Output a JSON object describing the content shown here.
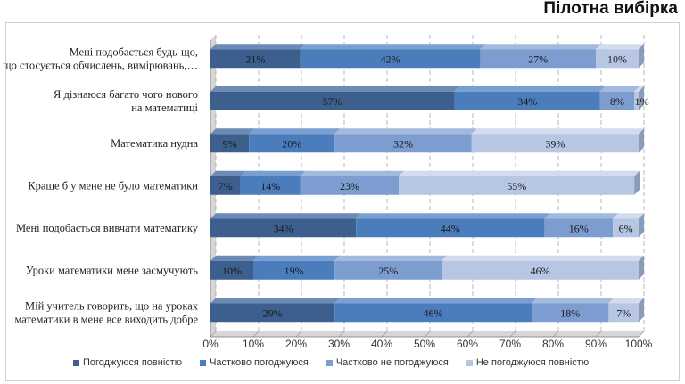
{
  "header": {
    "title": "Пілотна вибірка"
  },
  "colors": {
    "series": [
      "#3c5f8e",
      "#4b7cbc",
      "#7d9ccf",
      "#b6c6e3"
    ],
    "series_top": [
      "#6c8bb6",
      "#7aa0d3",
      "#a3badf",
      "#d3dcee"
    ],
    "series_side": [
      "#2b4469",
      "#375b8a",
      "#5b76a4",
      "#8b9bba"
    ],
    "grid": "#9a9a9a",
    "wall": "#d6d6d6"
  },
  "chart_data": {
    "type": "bar",
    "orientation": "horizontal",
    "stacked": "100%",
    "categories": [
      [
        "Мені подобається будь-що,",
        "що стосується обчислень, вимірювань,…"
      ],
      [
        "Я дізнаюся багато чого нового",
        "на математиці"
      ],
      [
        "Математика нудна"
      ],
      [
        "Краще б у мене не було математики"
      ],
      [
        "Мені подобається вивчати математику"
      ],
      [
        "Уроки математики мене засмучують"
      ],
      [
        "Мій учитель говорить, що на уроках",
        "математики в мене все виходить добре"
      ]
    ],
    "series": [
      {
        "name": "Погоджуюся повністю",
        "values": [
          21,
          57,
          9,
          7,
          34,
          10,
          29
        ]
      },
      {
        "name": "Частково погоджуюся",
        "values": [
          42,
          34,
          20,
          14,
          44,
          19,
          46
        ]
      },
      {
        "name": "Частково не погоджуюся",
        "values": [
          27,
          8,
          32,
          23,
          16,
          25,
          18
        ]
      },
      {
        "name": "Не погоджуюся повністю",
        "values": [
          10,
          1,
          39,
          55,
          6,
          46,
          7
        ]
      }
    ],
    "value_labels": [
      [
        "21%",
        "42%",
        "27%",
        "10%"
      ],
      [
        "57%",
        "34%",
        "8%",
        "1%"
      ],
      [
        "9%",
        "20%",
        "32%",
        "39%"
      ],
      [
        "7%",
        "14%",
        "23%",
        "55%"
      ],
      [
        "34%",
        "44%",
        "16%",
        "6%"
      ],
      [
        "10%",
        "19%",
        "25%",
        "46%"
      ],
      [
        "29%",
        "46%",
        "18%",
        "7%"
      ]
    ],
    "xticks": [
      "0%",
      "10%",
      "20%",
      "30%",
      "40%",
      "50%",
      "60%",
      "70%",
      "80%",
      "90%",
      "100%"
    ],
    "xlim": [
      0,
      100
    ],
    "grid": true,
    "legend_position": "bottom"
  }
}
